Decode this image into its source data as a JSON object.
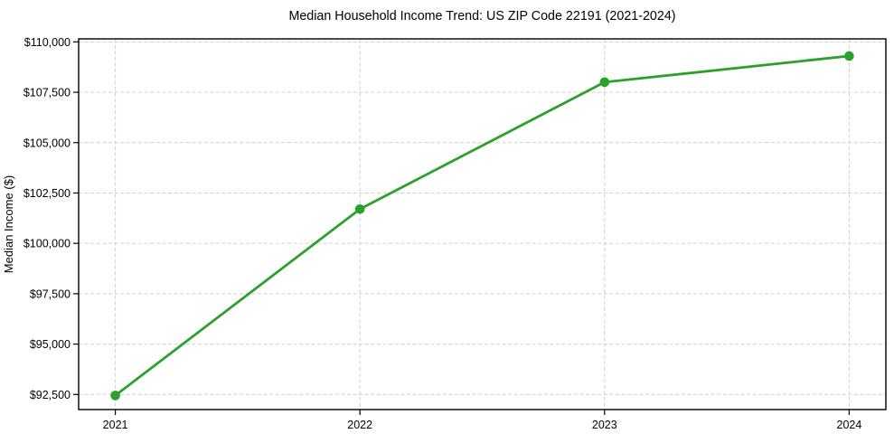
{
  "chart_data": {
    "type": "line",
    "title": "Median Household Income Trend: US ZIP Code 22191 (2021-2024)",
    "ylabel": "Median Income ($)",
    "xlabel": "",
    "categories": [
      "2021",
      "2022",
      "2023",
      "2024"
    ],
    "x": [
      2021,
      2022,
      2023,
      2024
    ],
    "values": [
      92450,
      101700,
      108000,
      109300
    ],
    "line_color": "#2ca02c",
    "marker_color": "#2ca02c",
    "grid": true,
    "grid_color": "#d0d0d0",
    "grid_style": "dashed",
    "legend": "none",
    "xlim": [
      2020.85,
      2024.15
    ],
    "ylim": [
      91750,
      110150
    ],
    "yticks": [
      {
        "value": 92500,
        "label": "$92,500"
      },
      {
        "value": 95000,
        "label": "$95,000"
      },
      {
        "value": 97500,
        "label": "$97,500"
      },
      {
        "value": 100000,
        "label": "$100,000"
      },
      {
        "value": 102500,
        "label": "$102,500"
      },
      {
        "value": 105000,
        "label": "$105,000"
      },
      {
        "value": 107500,
        "label": "$107,500"
      },
      {
        "value": 110000,
        "label": "$110,000"
      }
    ],
    "xticks": [
      {
        "value": 2021,
        "label": "2021"
      },
      {
        "value": 2022,
        "label": "2022"
      },
      {
        "value": 2023,
        "label": "2023"
      },
      {
        "value": 2024,
        "label": "2024"
      }
    ]
  }
}
